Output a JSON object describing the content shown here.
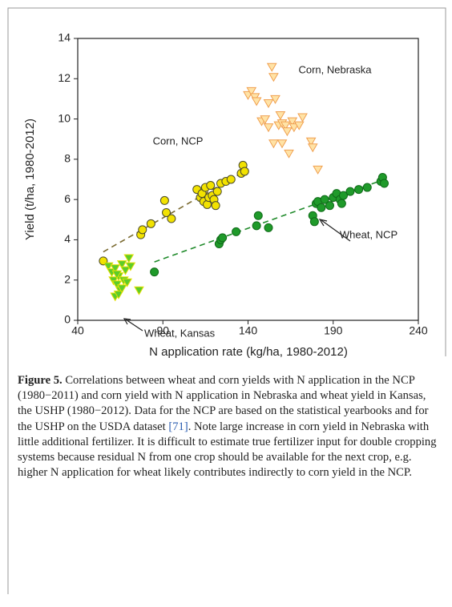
{
  "chart_data": {
    "type": "scatter",
    "xlabel": "N application rate (kg/ha, 1980-2012)",
    "ylabel": "Yield (t/ha, 1980-2012)",
    "xlim": [
      40,
      240
    ],
    "xticks": [
      40,
      90,
      140,
      190,
      240
    ],
    "ylim": [
      0,
      14
    ],
    "yticks": [
      0,
      2,
      4,
      6,
      8,
      10,
      12,
      14
    ],
    "grid": false,
    "series": [
      {
        "name": "Corn, NCP",
        "marker": "circle",
        "color": "#f2e200",
        "edge": "#4a4a2a",
        "x": [
          55,
          77,
          78,
          83,
          91,
          92,
          95,
          110,
          112,
          113,
          114,
          115,
          116,
          117,
          118,
          119,
          120,
          121,
          122,
          124,
          127,
          130,
          136,
          137,
          138
        ],
        "values": [
          2.95,
          4.25,
          4.5,
          4.8,
          5.95,
          5.35,
          5.05,
          6.5,
          6.1,
          6.3,
          5.9,
          6.6,
          5.75,
          6.1,
          6.7,
          6.2,
          6.0,
          5.7,
          6.4,
          6.8,
          6.9,
          7.0,
          7.3,
          7.7,
          7.4
        ]
      },
      {
        "name": "Corn, Nebraska",
        "marker": "triangle-down",
        "color": "#ffe3a6",
        "edge": "#f0a050",
        "x": [
          140,
          142,
          144,
          145,
          148,
          150,
          152,
          152,
          154,
          155,
          156,
          155,
          158,
          159,
          160,
          160,
          162,
          163,
          164,
          166,
          167,
          170,
          172,
          177,
          178,
          181
        ],
        "values": [
          11.2,
          11.4,
          11.1,
          10.9,
          9.9,
          10.0,
          9.6,
          10.8,
          12.6,
          12.1,
          11.0,
          8.8,
          9.7,
          10.2,
          9.8,
          8.8,
          9.7,
          9.4,
          8.3,
          9.9,
          9.6,
          9.7,
          10.1,
          8.9,
          8.6,
          7.5
        ]
      },
      {
        "name": "Wheat, NCP",
        "marker": "circle",
        "color": "#1f9a2a",
        "edge": "#0f6a18",
        "x": [
          85,
          123,
          124,
          125,
          133,
          145,
          146,
          152,
          178,
          179,
          180,
          181,
          183,
          185,
          188,
          190,
          192,
          194,
          195,
          196,
          200,
          205,
          210,
          218,
          219,
          220
        ],
        "values": [
          2.4,
          3.8,
          4.0,
          4.1,
          4.4,
          4.7,
          5.2,
          4.6,
          5.2,
          4.9,
          5.8,
          5.9,
          5.6,
          6.0,
          5.7,
          6.1,
          6.3,
          6.0,
          5.8,
          6.2,
          6.4,
          6.5,
          6.6,
          6.9,
          7.1,
          6.8
        ]
      },
      {
        "name": "Wheat, Kansas",
        "marker": "triangle-down",
        "color": "#5ccc2a",
        "edge": "#e6e000",
        "x": [
          58,
          60,
          61,
          62,
          63,
          64,
          65,
          62,
          66,
          64,
          67,
          68,
          69,
          70,
          71,
          76,
          66,
          63
        ],
        "values": [
          2.7,
          2.4,
          2.0,
          2.6,
          1.8,
          2.2,
          1.5,
          1.2,
          2.8,
          1.3,
          2.0,
          2.5,
          1.9,
          3.1,
          2.7,
          1.5,
          1.6,
          2.3
        ]
      }
    ],
    "trendlines": [
      {
        "color": "#7a6a30",
        "x": [
          55,
          138
        ],
        "y": [
          3.4,
          7.4
        ]
      },
      {
        "color": "#1f8a2a",
        "x": [
          85,
          220
        ],
        "y": [
          2.9,
          7.0
        ]
      }
    ]
  },
  "caption": {
    "label": "Figure 5.",
    "text_before": "Correlations between wheat and corn yields with N application in the NCP (1980−2011) and corn yield with N application in Nebraska and wheat yield in Kansas, the USHP (1980−2012). Data for the NCP are based on the statistical yearbooks and for the USHP on the USDA dataset",
    "ref": "[71]",
    "text_after": ". Note large increase in corn yield in Nebraska with little additional fertilizer. It is difficult to estimate true fertilizer input for double cropping systems because residual N from one crop should be available for the next crop, e.g. higher N application for wheat likely contributes indirectly to corn yield in the NCP."
  }
}
